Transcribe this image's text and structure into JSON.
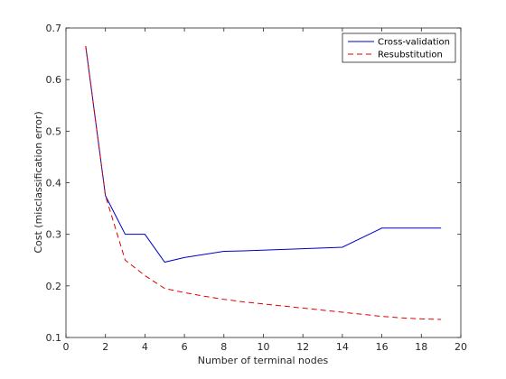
{
  "chart_data": {
    "type": "line",
    "title": "",
    "xlabel": "Number of terminal nodes",
    "ylabel": "Cost (misclassification error)",
    "xlim": [
      0,
      20
    ],
    "ylim": [
      0.1,
      0.7
    ],
    "xticks": [
      0,
      2,
      4,
      6,
      8,
      10,
      12,
      14,
      16,
      18,
      20
    ],
    "yticks": [
      0.1,
      0.2,
      0.3,
      0.4,
      0.5,
      0.6,
      0.7
    ],
    "grid": false,
    "legend_position": "top-right",
    "series": [
      {
        "name": "Cross-validation",
        "color": "#0000c8",
        "line_style": "solid",
        "x": [
          1,
          2,
          3,
          4,
          5,
          6,
          8,
          9,
          12,
          14,
          16,
          19
        ],
        "y": [
          0.665,
          0.375,
          0.3,
          0.3,
          0.246,
          0.255,
          0.267,
          0.268,
          0.272,
          0.275,
          0.312,
          0.312
        ]
      },
      {
        "name": "Resubstitution",
        "color": "#e00000",
        "line_style": "dashed",
        "x": [
          1,
          2,
          3,
          4,
          5,
          6,
          7,
          8,
          9,
          10,
          11,
          12,
          13,
          14,
          15,
          16,
          17,
          18,
          19
        ],
        "y": [
          0.665,
          0.375,
          0.25,
          0.22,
          0.195,
          0.187,
          0.18,
          0.174,
          0.169,
          0.165,
          0.161,
          0.157,
          0.153,
          0.149,
          0.145,
          0.141,
          0.138,
          0.136,
          0.135
        ]
      }
    ]
  }
}
